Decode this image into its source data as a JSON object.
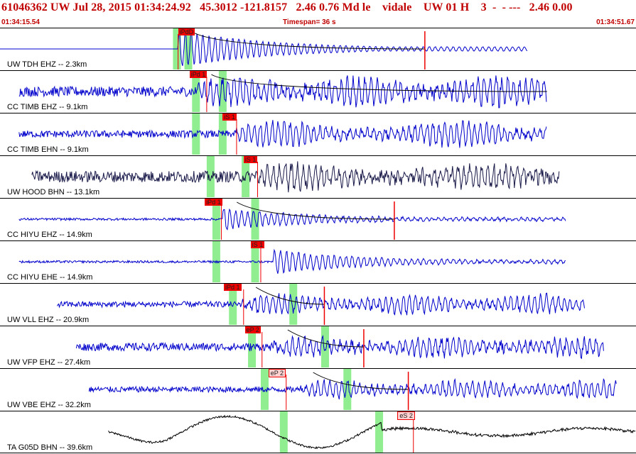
{
  "header": {
    "event_line": "61046362 UW Jul 28, 2015 01:34:24.92   45.3012 -121.8157   2.46 0.76 Md le    vidale    UW 01 H    3  -  - ---   2.46 0.00",
    "start_time": "01:34:15.54",
    "timespan": "Timespan=  36 s",
    "end_time": "01:34:51.67"
  },
  "colors": {
    "trace": "#0000cc",
    "trace_dark": "#1a1a4a",
    "trace_black": "#000000",
    "pick": "#ee0000",
    "window": "#90ee90",
    "header": "#c00000"
  },
  "panels": [
    {
      "id": "tdh",
      "label": "UW TDH EHZ -- 2.3km",
      "color": "#0000cc",
      "start": 0.0,
      "end": 0.83,
      "onset": 0.28,
      "amp": 0.95,
      "noise": 0.0,
      "clip": true,
      "coda": true,
      "decay": true,
      "windows": [
        0.272,
        0.29
      ],
      "picks": [
        {
          "label": "iPdD",
          "pos": 0.28,
          "kind": "auto"
        }
      ],
      "marker": 0.668,
      "lines": [
        0.28
      ]
    },
    {
      "id": "timbz",
      "label": "CC TIMB EHZ -- 9.1km",
      "color": "#0000cc",
      "start": 0.03,
      "end": 0.86,
      "onset": 0.31,
      "amp": 0.65,
      "noise": 0.35,
      "clip": false,
      "coda": true,
      "decay": false,
      "windows": [
        0.302,
        0.344
      ],
      "picks": [
        {
          "label": "iPd 1",
          "pos": 0.298,
          "kind": "auto"
        }
      ],
      "marker": null,
      "lines": [
        0.325
      ]
    },
    {
      "id": "timbn",
      "label": "CC TIMB EHN -- 9.1km",
      "color": "#0000cc",
      "start": 0.03,
      "end": 0.86,
      "onset": 0.37,
      "amp": 0.6,
      "noise": 0.25,
      "clip": false,
      "coda": false,
      "decay": false,
      "windows": [
        0.302,
        0.344
      ],
      "picks": [
        {
          "label": "iS 1",
          "pos": 0.35,
          "kind": "auto"
        }
      ],
      "marker": null,
      "lines": [
        0.372
      ]
    },
    {
      "id": "hood",
      "label": "UW HOOD BHN -- 13.1km",
      "color": "#1a1a4a",
      "start": 0.05,
      "end": 0.88,
      "onset": 0.4,
      "amp": 0.55,
      "noise": 0.4,
      "clip": false,
      "coda": false,
      "decay": false,
      "windows": [
        0.325,
        0.38
      ],
      "picks": [
        {
          "label": "iS 1",
          "pos": 0.383,
          "kind": "auto"
        }
      ],
      "marker": null,
      "lines": [
        0.405
      ]
    },
    {
      "id": "hiyuz",
      "label": "CC HIYU EHZ -- 14.9km",
      "color": "#0000cc",
      "start": 0.03,
      "end": 0.89,
      "onset": 0.35,
      "amp": 0.55,
      "noise": 0.08,
      "clip": false,
      "coda": true,
      "decay": true,
      "windows": [
        0.334,
        0.395
      ],
      "picks": [
        {
          "label": "iPd 1",
          "pos": 0.322,
          "kind": "auto"
        }
      ],
      "marker": 0.62,
      "lines": [
        0.348
      ]
    },
    {
      "id": "hiyue",
      "label": "CC HIYU EHE -- 14.9km",
      "color": "#0000cc",
      "start": 0.03,
      "end": 0.89,
      "onset": 0.43,
      "amp": 0.6,
      "noise": 0.08,
      "clip": false,
      "coda": false,
      "decay": true,
      "windows": [
        0.334,
        0.395
      ],
      "picks": [
        {
          "label": "iS 1",
          "pos": 0.394,
          "kind": "auto"
        }
      ],
      "marker": null,
      "lines": [
        0.41
      ]
    },
    {
      "id": "vll",
      "label": "UW VLL EHZ -- 20.9km",
      "color": "#0000cc",
      "start": 0.09,
      "end": 0.92,
      "onset": 0.38,
      "amp": 0.45,
      "noise": 0.2,
      "clip": false,
      "coda": true,
      "decay": false,
      "windows": [
        0.36,
        0.455
      ],
      "picks": [
        {
          "label": "iPd 1",
          "pos": 0.352,
          "kind": "auto"
        }
      ],
      "marker": 0.51,
      "lines": [
        0.383
      ]
    },
    {
      "id": "vfp",
      "label": "UW VFP EHZ -- 27.4km",
      "color": "#0000cc",
      "start": 0.12,
      "end": 0.95,
      "onset": 0.43,
      "amp": 0.42,
      "noise": 0.28,
      "clip": false,
      "coda": true,
      "decay": false,
      "windows": [
        0.39,
        0.505
      ],
      "picks": [
        {
          "label": "eP 2",
          "pos": 0.385,
          "kind": "auto"
        }
      ],
      "marker": 0.572,
      "lines": [
        0.412
      ]
    },
    {
      "id": "vbe",
      "label": "UW VBE EHZ -- 32.2km",
      "color": "#0000cc",
      "start": 0.14,
      "end": 0.97,
      "onset": 0.47,
      "amp": 0.4,
      "noise": 0.2,
      "clip": false,
      "coda": true,
      "decay": false,
      "windows": [
        0.41,
        0.54
      ],
      "picks": [
        {
          "label": "eP 2",
          "pos": 0.422,
          "kind": "hand"
        }
      ],
      "marker": 0.642,
      "lines": [
        0.45
      ]
    },
    {
      "id": "g05d",
      "label": "TA G05D BHN -- 39.6km",
      "color": "#000000",
      "start": 0.17,
      "end": 1.0,
      "onset": 0.6,
      "amp": 0.4,
      "noise": 0.05,
      "clip": false,
      "coda": false,
      "decay": false,
      "longperiod": true,
      "windows": [
        0.44,
        0.59
      ],
      "picks": [
        {
          "label": "eS 2",
          "pos": 0.625,
          "kind": "hand"
        }
      ],
      "marker": null,
      "lines": [
        0.65
      ]
    }
  ]
}
